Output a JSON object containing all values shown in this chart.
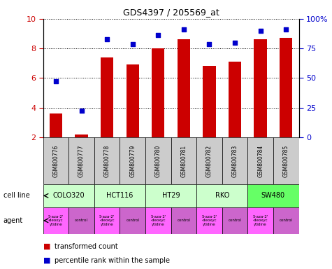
{
  "title": "GDS4397 / 205569_at",
  "samples": [
    "GSM800776",
    "GSM800777",
    "GSM800778",
    "GSM800779",
    "GSM800780",
    "GSM800781",
    "GSM800782",
    "GSM800783",
    "GSM800784",
    "GSM800785"
  ],
  "bar_values": [
    3.6,
    2.2,
    7.4,
    6.9,
    8.0,
    8.6,
    6.8,
    7.1,
    8.6,
    8.7
  ],
  "scatter_values": [
    5.8,
    3.8,
    8.6,
    8.3,
    8.9,
    9.3,
    8.3,
    8.4,
    9.2,
    9.3
  ],
  "bar_color": "#cc0000",
  "scatter_color": "#0000cc",
  "ylim_left": [
    2,
    10
  ],
  "ylim_right": [
    0,
    100
  ],
  "yticks_left": [
    2,
    4,
    6,
    8,
    10
  ],
  "yticks_right": [
    0,
    25,
    50,
    75,
    100
  ],
  "ytick_labels_right": [
    "0",
    "25",
    "50",
    "75",
    "100%"
  ],
  "cell_lines": [
    "COLO320",
    "HCT116",
    "HT29",
    "RKO",
    "SW480"
  ],
  "cell_line_spans": [
    [
      0,
      1
    ],
    [
      2,
      3
    ],
    [
      4,
      5
    ],
    [
      6,
      7
    ],
    [
      8,
      9
    ]
  ],
  "cell_line_colors": [
    "#ccffcc",
    "#ccffcc",
    "#ccffcc",
    "#ccffcc",
    "#66ff66"
  ],
  "agent_labels": [
    "5-aza-2'\n-deoxyc\nytidine",
    "control",
    "5-aza-2'\n-deoxyc\nytidine",
    "control",
    "5-aza-2'\n-deoxyc\nytidine",
    "control",
    "5-aza-2'\n-deoxyc\nytidine",
    "control",
    "5-aza-2'\n-deoxyc\nytidine",
    "control"
  ],
  "agent_drug_color": "#ff66ff",
  "agent_control_color": "#cc66cc",
  "label_cell_line": "cell line",
  "label_agent": "agent",
  "legend_bar": "transformed count",
  "legend_scatter": "percentile rank within the sample",
  "tick_label_color_left": "#cc0000",
  "tick_label_color_right": "#0000cc",
  "sample_box_color": "#cccccc"
}
